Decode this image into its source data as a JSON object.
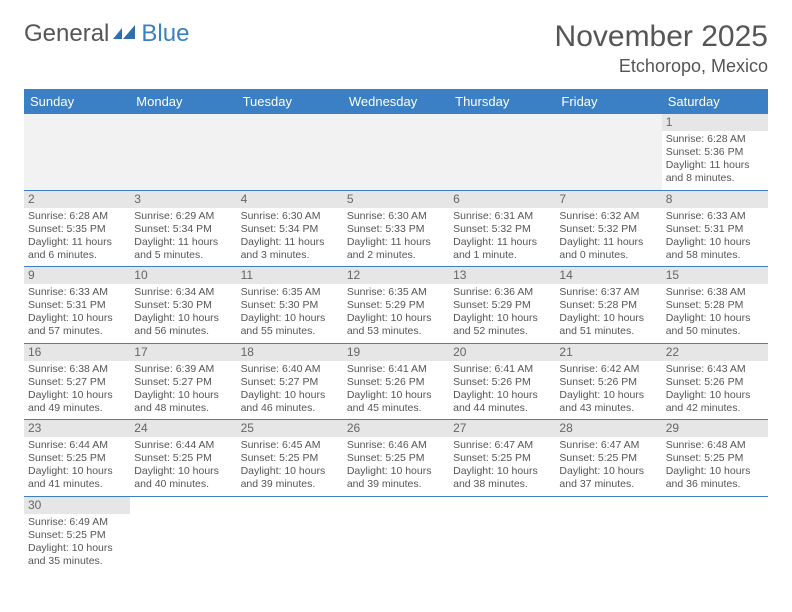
{
  "logo": {
    "text_left": "General",
    "text_right": "Blue"
  },
  "header": {
    "title": "November 2025",
    "location": "Etchoropo, Mexico"
  },
  "colors": {
    "header_bg": "#3b7fc4",
    "header_text": "#ffffff",
    "row_border": "#3b7fc4",
    "daynum_bg": "#e6e6e6",
    "empty_bg": "#f2f2f2",
    "text": "#555555"
  },
  "weekdays": [
    "Sunday",
    "Monday",
    "Tuesday",
    "Wednesday",
    "Thursday",
    "Friday",
    "Saturday"
  ],
  "first_weekday_index": 6,
  "days": [
    {
      "n": 1,
      "sunrise": "6:28 AM",
      "sunset": "5:36 PM",
      "daylight": "11 hours and 8 minutes."
    },
    {
      "n": 2,
      "sunrise": "6:28 AM",
      "sunset": "5:35 PM",
      "daylight": "11 hours and 6 minutes."
    },
    {
      "n": 3,
      "sunrise": "6:29 AM",
      "sunset": "5:34 PM",
      "daylight": "11 hours and 5 minutes."
    },
    {
      "n": 4,
      "sunrise": "6:30 AM",
      "sunset": "5:34 PM",
      "daylight": "11 hours and 3 minutes."
    },
    {
      "n": 5,
      "sunrise": "6:30 AM",
      "sunset": "5:33 PM",
      "daylight": "11 hours and 2 minutes."
    },
    {
      "n": 6,
      "sunrise": "6:31 AM",
      "sunset": "5:32 PM",
      "daylight": "11 hours and 1 minute."
    },
    {
      "n": 7,
      "sunrise": "6:32 AM",
      "sunset": "5:32 PM",
      "daylight": "11 hours and 0 minutes."
    },
    {
      "n": 8,
      "sunrise": "6:33 AM",
      "sunset": "5:31 PM",
      "daylight": "10 hours and 58 minutes."
    },
    {
      "n": 9,
      "sunrise": "6:33 AM",
      "sunset": "5:31 PM",
      "daylight": "10 hours and 57 minutes."
    },
    {
      "n": 10,
      "sunrise": "6:34 AM",
      "sunset": "5:30 PM",
      "daylight": "10 hours and 56 minutes."
    },
    {
      "n": 11,
      "sunrise": "6:35 AM",
      "sunset": "5:30 PM",
      "daylight": "10 hours and 55 minutes."
    },
    {
      "n": 12,
      "sunrise": "6:35 AM",
      "sunset": "5:29 PM",
      "daylight": "10 hours and 53 minutes."
    },
    {
      "n": 13,
      "sunrise": "6:36 AM",
      "sunset": "5:29 PM",
      "daylight": "10 hours and 52 minutes."
    },
    {
      "n": 14,
      "sunrise": "6:37 AM",
      "sunset": "5:28 PM",
      "daylight": "10 hours and 51 minutes."
    },
    {
      "n": 15,
      "sunrise": "6:38 AM",
      "sunset": "5:28 PM",
      "daylight": "10 hours and 50 minutes."
    },
    {
      "n": 16,
      "sunrise": "6:38 AM",
      "sunset": "5:27 PM",
      "daylight": "10 hours and 49 minutes."
    },
    {
      "n": 17,
      "sunrise": "6:39 AM",
      "sunset": "5:27 PM",
      "daylight": "10 hours and 48 minutes."
    },
    {
      "n": 18,
      "sunrise": "6:40 AM",
      "sunset": "5:27 PM",
      "daylight": "10 hours and 46 minutes."
    },
    {
      "n": 19,
      "sunrise": "6:41 AM",
      "sunset": "5:26 PM",
      "daylight": "10 hours and 45 minutes."
    },
    {
      "n": 20,
      "sunrise": "6:41 AM",
      "sunset": "5:26 PM",
      "daylight": "10 hours and 44 minutes."
    },
    {
      "n": 21,
      "sunrise": "6:42 AM",
      "sunset": "5:26 PM",
      "daylight": "10 hours and 43 minutes."
    },
    {
      "n": 22,
      "sunrise": "6:43 AM",
      "sunset": "5:26 PM",
      "daylight": "10 hours and 42 minutes."
    },
    {
      "n": 23,
      "sunrise": "6:44 AM",
      "sunset": "5:25 PM",
      "daylight": "10 hours and 41 minutes."
    },
    {
      "n": 24,
      "sunrise": "6:44 AM",
      "sunset": "5:25 PM",
      "daylight": "10 hours and 40 minutes."
    },
    {
      "n": 25,
      "sunrise": "6:45 AM",
      "sunset": "5:25 PM",
      "daylight": "10 hours and 39 minutes."
    },
    {
      "n": 26,
      "sunrise": "6:46 AM",
      "sunset": "5:25 PM",
      "daylight": "10 hours and 39 minutes."
    },
    {
      "n": 27,
      "sunrise": "6:47 AM",
      "sunset": "5:25 PM",
      "daylight": "10 hours and 38 minutes."
    },
    {
      "n": 28,
      "sunrise": "6:47 AM",
      "sunset": "5:25 PM",
      "daylight": "10 hours and 37 minutes."
    },
    {
      "n": 29,
      "sunrise": "6:48 AM",
      "sunset": "5:25 PM",
      "daylight": "10 hours and 36 minutes."
    },
    {
      "n": 30,
      "sunrise": "6:49 AM",
      "sunset": "5:25 PM",
      "daylight": "10 hours and 35 minutes."
    }
  ],
  "labels": {
    "sunrise": "Sunrise:",
    "sunset": "Sunset:",
    "daylight": "Daylight:"
  }
}
